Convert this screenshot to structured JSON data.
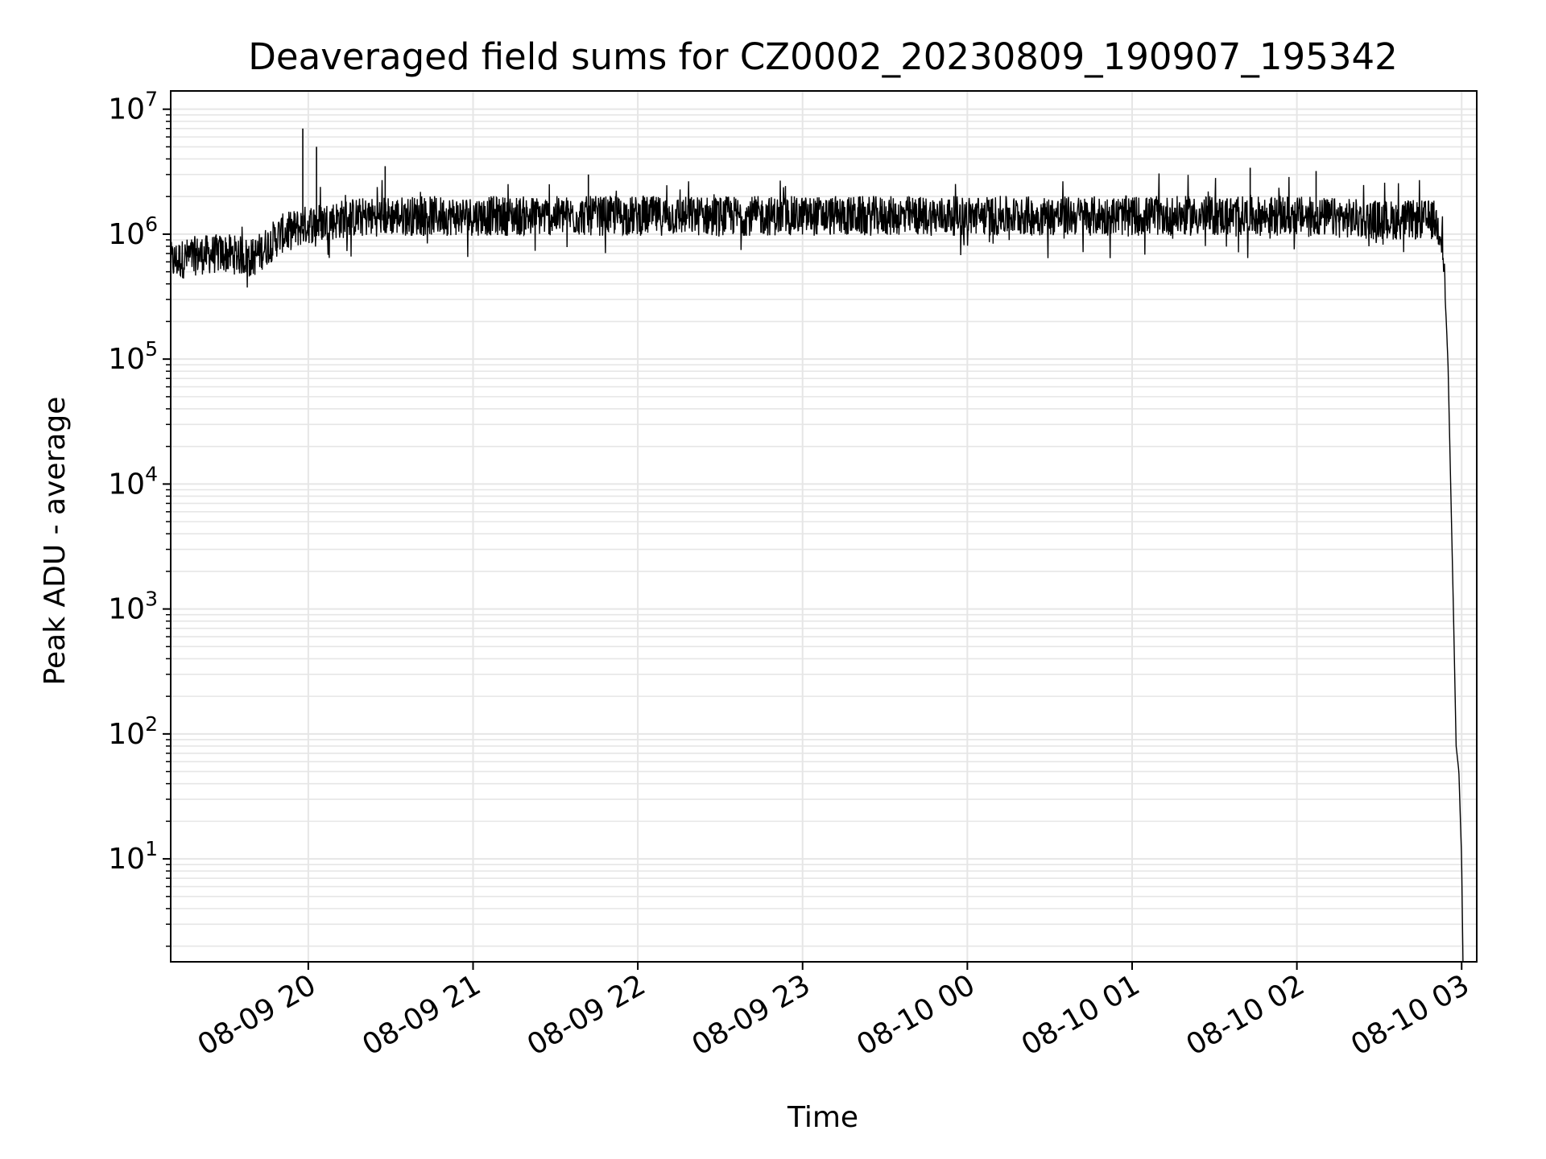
{
  "chart_data": {
    "type": "line",
    "title": "Deaveraged field sums for CZ0002_20230809_190907_195342",
    "xlabel": "Time",
    "ylabel": "Peak ADU - average",
    "yscale": "log",
    "ylim": [
      1.5,
      14000000
    ],
    "xlim": [
      "2023-08-09 19:09:54",
      "2023-08-10 03:05:30"
    ],
    "grid": true,
    "xticks": [
      {
        "value": "2023-08-09 20:00",
        "label": "08-09 20"
      },
      {
        "value": "2023-08-09 21:00",
        "label": "08-09 21"
      },
      {
        "value": "2023-08-09 22:00",
        "label": "08-09 22"
      },
      {
        "value": "2023-08-09 23:00",
        "label": "08-09 23"
      },
      {
        "value": "2023-08-10 00:00",
        "label": "08-10 00"
      },
      {
        "value": "2023-08-10 01:00",
        "label": "08-10 01"
      },
      {
        "value": "2023-08-10 02:00",
        "label": "08-10 02"
      },
      {
        "value": "2023-08-10 03:00",
        "label": "08-10 03"
      }
    ],
    "yticks": [
      {
        "value": 10,
        "base": "10",
        "exp": "1"
      },
      {
        "value": 100,
        "base": "10",
        "exp": "2"
      },
      {
        "value": 1000,
        "base": "10",
        "exp": "3"
      },
      {
        "value": 10000,
        "base": "10",
        "exp": "4"
      },
      {
        "value": 100000,
        "base": "10",
        "exp": "5"
      },
      {
        "value": 1000000,
        "base": "10",
        "exp": "6"
      },
      {
        "value": 10000000,
        "base": "10",
        "exp": "7"
      }
    ],
    "series": [
      {
        "color": "#000000",
        "x": [
          "2023-08-09 19:10",
          "2023-08-09 19:20",
          "2023-08-09 19:30",
          "2023-08-09 19:40",
          "2023-08-09 19:50",
          "2023-08-09 20:00",
          "2023-08-09 20:15",
          "2023-08-09 20:30",
          "2023-08-09 21:00",
          "2023-08-09 21:30",
          "2023-08-09 22:00",
          "2023-08-09 22:30",
          "2023-08-09 23:00",
          "2023-08-09 23:30",
          "2023-08-10 00:00",
          "2023-08-10 00:30",
          "2023-08-10 01:00",
          "2023-08-10 01:30",
          "2023-08-10 02:00",
          "2023-08-10 02:30",
          "2023-08-10 02:50",
          "2023-08-10 02:53",
          "2023-08-10 02:55",
          "2023-08-10 02:57",
          "2023-08-10 02:58",
          "2023-08-10 02:59",
          "2023-08-10 03:00",
          "2023-08-10 03:00:30"
        ],
        "y": [
          600000,
          680000,
          700000,
          650000,
          1000000,
          1200000,
          1350000,
          1400000,
          1400000,
          1400000,
          1400000,
          1400000,
          1400000,
          1400000,
          1400000,
          1400000,
          1400000,
          1400000,
          1400000,
          1300000,
          1300000,
          1000000,
          100000,
          1000,
          80,
          50,
          10,
          1.5
        ],
        "spikes": [
          {
            "x": "2023-08-09 19:58",
            "y": 7000000
          },
          {
            "x": "2023-08-09 20:03",
            "y": 5000000
          },
          {
            "x": "2023-08-09 20:28",
            "y": 3500000
          },
          {
            "x": "2023-08-09 21:42",
            "y": 3000000
          },
          {
            "x": "2023-08-10 01:43",
            "y": 3400000
          },
          {
            "x": "2023-08-10 02:07",
            "y": 3200000
          }
        ]
      }
    ]
  }
}
